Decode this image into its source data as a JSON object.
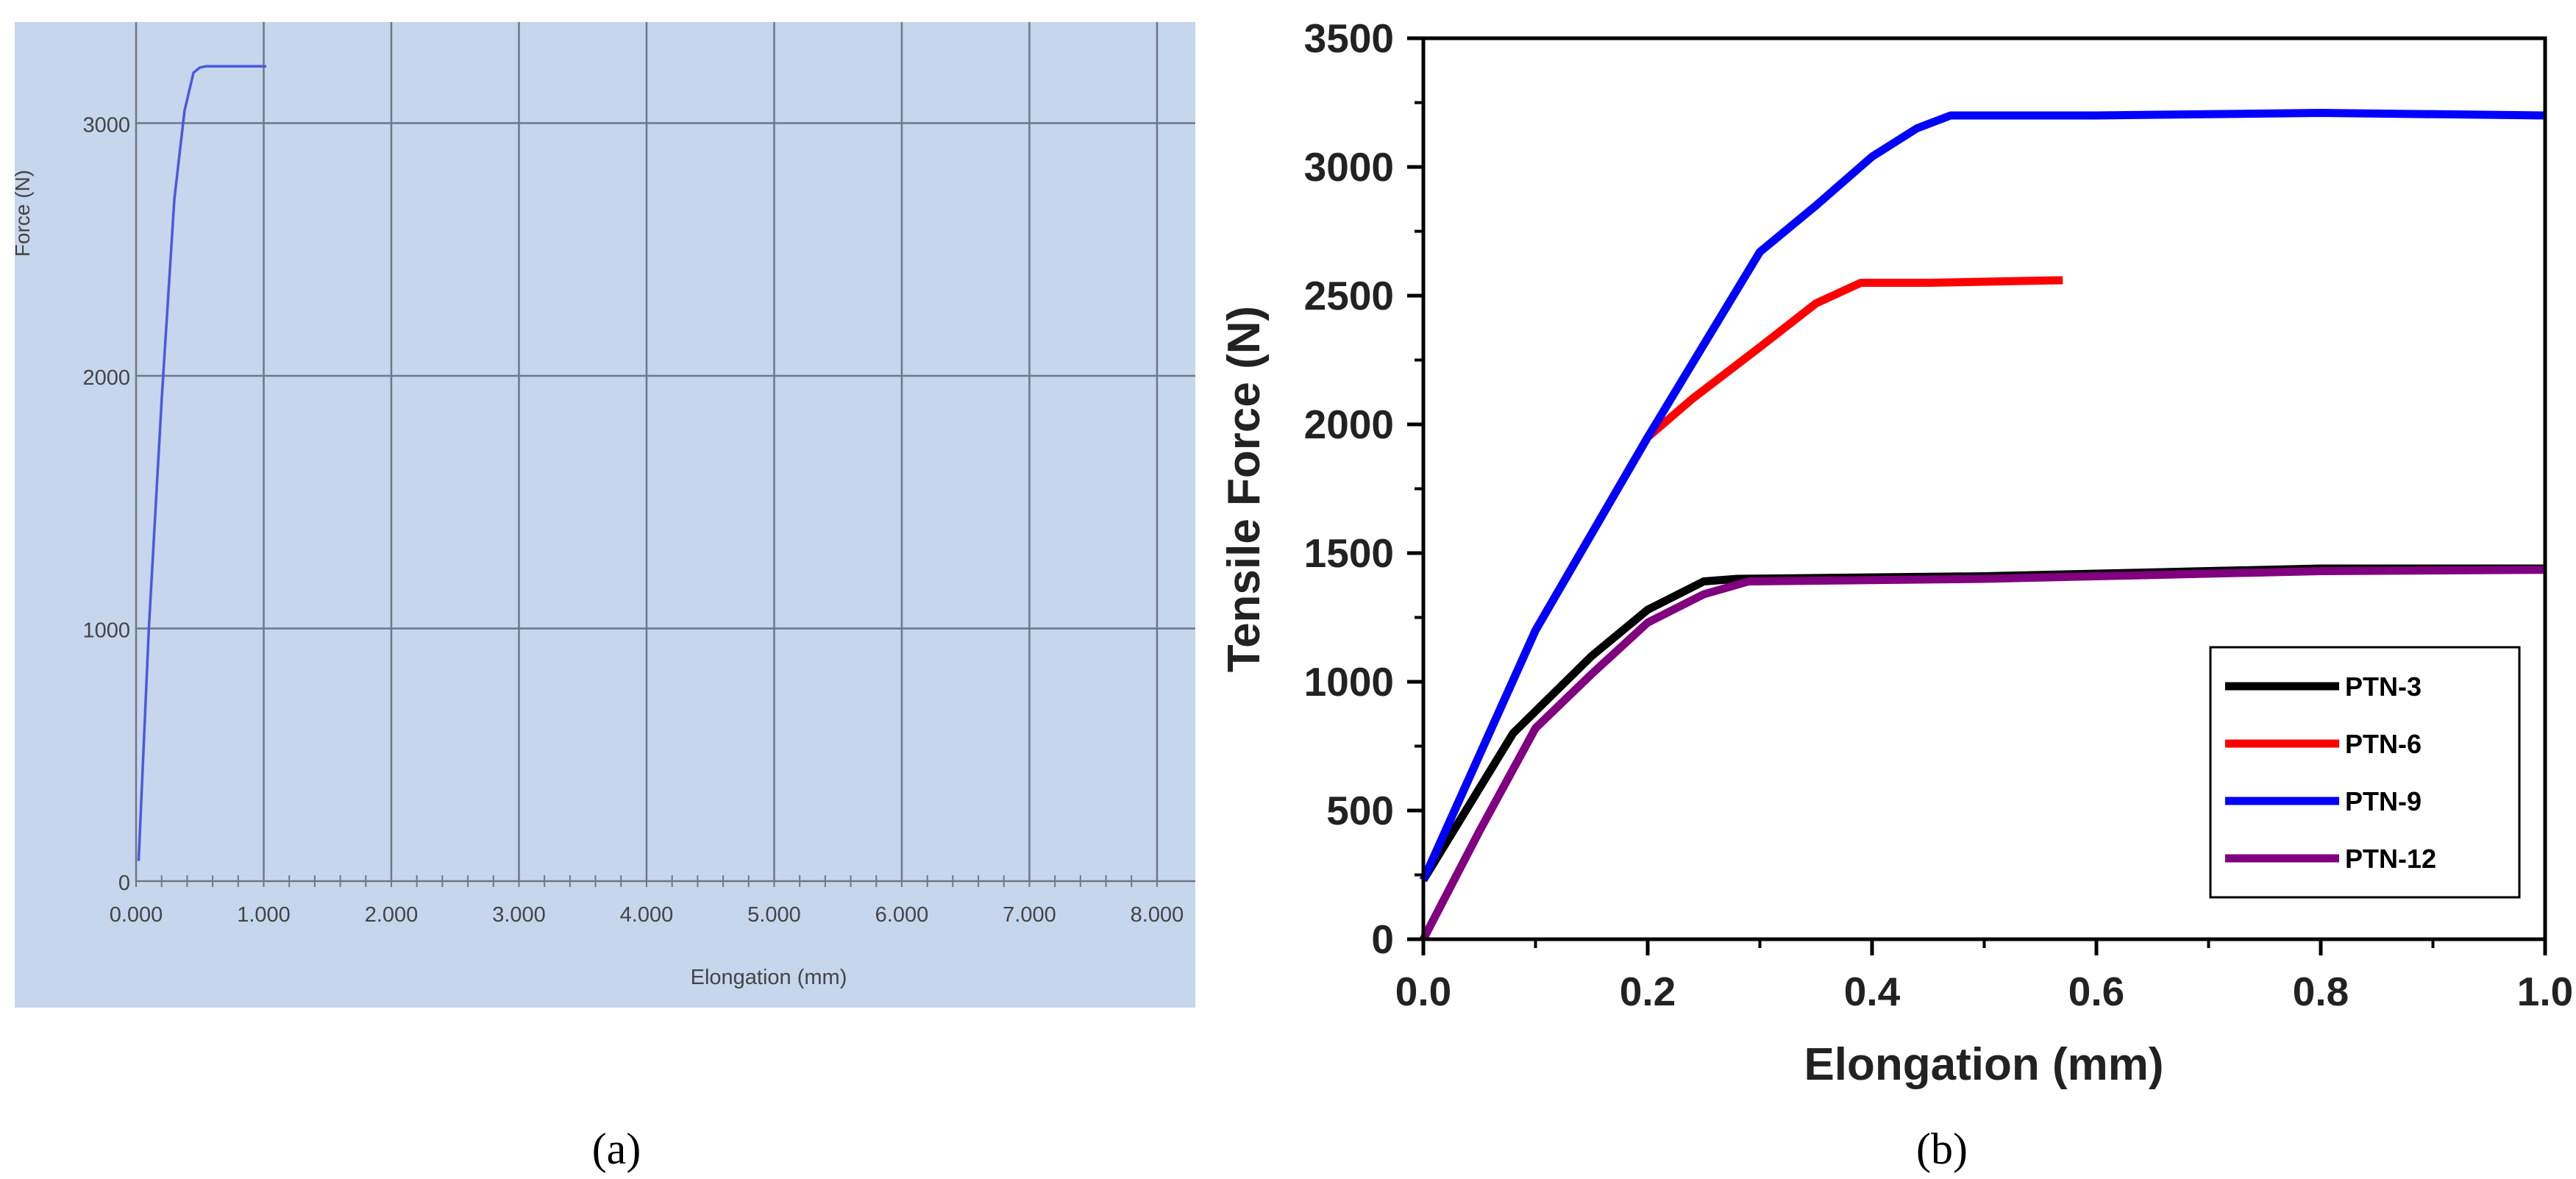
{
  "chart_data": [
    {
      "panel": "(a)",
      "type": "line",
      "title": "",
      "xlabel": "Elongation (mm)",
      "ylabel": "Force (N)",
      "xlim": [
        0,
        8.3
      ],
      "ylim": [
        0,
        3400
      ],
      "xticks": [
        0,
        1,
        2,
        3,
        4,
        5,
        6,
        7,
        8
      ],
      "xtick_labels": [
        "0.000",
        "1.000",
        "2.000",
        "3.000",
        "4.000",
        "5.000",
        "6.000",
        "7.000",
        "8.000"
      ],
      "yticks": [
        0,
        1000,
        2000,
        3000
      ],
      "ytick_labels": [
        "0",
        "1000",
        "2000",
        "3000"
      ],
      "grid": true,
      "legend": "none",
      "background_color": "#c6d6ec",
      "series": [
        {
          "name": "",
          "color": "#4a58e0",
          "x": [
            0.02,
            0.1,
            0.2,
            0.3,
            0.38,
            0.45,
            0.5,
            0.55,
            0.6,
            1.02
          ],
          "y": [
            80,
            1000,
            1900,
            2700,
            3050,
            3200,
            3220,
            3225,
            3225,
            3225
          ]
        }
      ]
    },
    {
      "panel": "(b)",
      "type": "line",
      "title": "",
      "xlabel": "Elongation (mm)",
      "ylabel": "Tensile Force (N)",
      "xlim": [
        0,
        1.0
      ],
      "ylim": [
        0,
        3500
      ],
      "xticks": [
        0,
        0.2,
        0.4,
        0.6,
        0.8,
        1.0
      ],
      "xtick_labels": [
        "0.0",
        "0.2",
        "0.4",
        "0.6",
        "0.8",
        "1.0"
      ],
      "yticks": [
        0,
        500,
        1000,
        1500,
        2000,
        2500,
        3000,
        3500
      ],
      "ytick_labels": [
        "0",
        "500",
        "1000",
        "1500",
        "2000",
        "2500",
        "3000",
        "3500"
      ],
      "grid": false,
      "legend": "bottom-right",
      "series": [
        {
          "name": "PTN-3",
          "color": "#000000",
          "x": [
            0.0,
            0.08,
            0.15,
            0.2,
            0.25,
            0.28,
            0.5,
            0.8,
            1.0
          ],
          "y": [
            230,
            800,
            1100,
            1280,
            1390,
            1400,
            1410,
            1440,
            1440
          ]
        },
        {
          "name": "PTN-6",
          "color": "#ff0000",
          "x": [
            0.0,
            0.1,
            0.2,
            0.24,
            0.3,
            0.35,
            0.39,
            0.45,
            0.57
          ],
          "y": [
            230,
            1200,
            1950,
            2100,
            2300,
            2470,
            2550,
            2550,
            2560
          ]
        },
        {
          "name": "PTN-9",
          "color": "#0000ff",
          "x": [
            0.0,
            0.1,
            0.2,
            0.3,
            0.35,
            0.4,
            0.44,
            0.47,
            0.6,
            0.8,
            1.0
          ],
          "y": [
            230,
            1200,
            1950,
            2670,
            2850,
            3040,
            3150,
            3200,
            3200,
            3210,
            3200
          ]
        },
        {
          "name": "PTN-12",
          "color": "#800080",
          "x": [
            0.0,
            0.05,
            0.1,
            0.15,
            0.2,
            0.25,
            0.29,
            0.5,
            0.8,
            1.0
          ],
          "y": [
            0,
            420,
            820,
            1030,
            1230,
            1340,
            1390,
            1400,
            1430,
            1435
          ]
        }
      ]
    }
  ],
  "captions": [
    "(a)",
    "(b)"
  ]
}
